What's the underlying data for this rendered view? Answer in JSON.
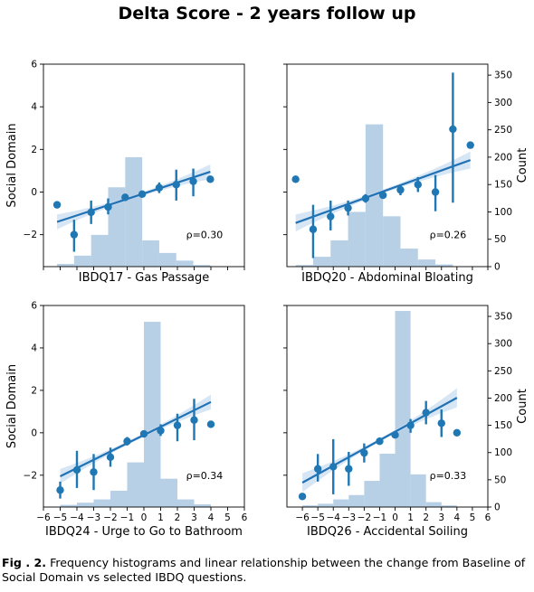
{
  "figure": {
    "title": "Delta Score - 2 years follow up",
    "caption_label": "Fig . 2.",
    "caption_text": "Frequency histograms and linear relationship between the change from Baseline of Social Domain vs selected IBDQ questions."
  },
  "colors": {
    "point": "#1f77b4",
    "line": "#2171b5",
    "hist": "#aac8e1",
    "ci_band": "#c6dcef"
  },
  "chart_data": [
    {
      "type": "scatter",
      "xlabel": "IBDQ17 - Gas Passage",
      "ylabel": "Social Domain",
      "y2label": "",
      "annotation": "ρ=0.30",
      "xlim": [
        -5.8,
        6
      ],
      "ylim": [
        -3.5,
        6
      ],
      "y2lim": [
        0,
        370
      ],
      "yticks": [
        -2,
        0,
        2,
        4,
        6
      ],
      "y2ticks": [],
      "xticks": [],
      "points": [
        {
          "x": -5,
          "y": -0.6,
          "lo": -0.6,
          "hi": -0.6
        },
        {
          "x": -4,
          "y": -2.0,
          "lo": -2.8,
          "hi": -1.3
        },
        {
          "x": -3,
          "y": -0.95,
          "lo": -1.5,
          "hi": -0.4
        },
        {
          "x": -2,
          "y": -0.7,
          "lo": -1.05,
          "hi": -0.3
        },
        {
          "x": -1,
          "y": -0.25,
          "lo": -0.4,
          "hi": -0.1
        },
        {
          "x": 0,
          "y": -0.1,
          "lo": -0.2,
          "hi": 0.0
        },
        {
          "x": 1,
          "y": 0.2,
          "lo": -0.05,
          "hi": 0.45
        },
        {
          "x": 2,
          "y": 0.35,
          "lo": -0.4,
          "hi": 1.05
        },
        {
          "x": 3,
          "y": 0.5,
          "lo": -0.2,
          "hi": 1.1
        },
        {
          "x": 4,
          "y": 0.6,
          "lo": 0.6,
          "hi": 0.6
        }
      ],
      "fit": {
        "x1": -5,
        "y1": -1.4,
        "x2": 4,
        "y2": 0.95,
        "band_low": 0.35,
        "band_mid": 0.08
      },
      "hist": [
        {
          "x0": -5,
          "x1": -4,
          "count": 5
        },
        {
          "x0": -4,
          "x1": -3,
          "count": 20
        },
        {
          "x0": -3,
          "x1": -2,
          "count": 58
        },
        {
          "x0": -2,
          "x1": -1,
          "count": 145
        },
        {
          "x0": -1,
          "x1": 0,
          "count": 200
        },
        {
          "x0": 0,
          "x1": 1,
          "count": 48
        },
        {
          "x0": 1,
          "x1": 2,
          "count": 25
        },
        {
          "x0": 2,
          "x1": 3,
          "count": 11
        },
        {
          "x0": 3,
          "x1": 4,
          "count": 3
        }
      ]
    },
    {
      "type": "scatter",
      "xlabel": "IBDQ20 - Abdominal Bloating",
      "ylabel": "",
      "y2label": "Count",
      "annotation": "ρ=0.26",
      "xlim": [
        -6.5,
        5
      ],
      "ylim": [
        -3.5,
        6
      ],
      "y2lim": [
        0,
        370
      ],
      "yticks": [],
      "y2ticks": [
        0,
        50,
        100,
        150,
        200,
        250,
        300,
        350
      ],
      "xticks": [],
      "points": [
        {
          "x": -6,
          "y": 0.6,
          "lo": 0.6,
          "hi": 0.6
        },
        {
          "x": -5,
          "y": -1.75,
          "lo": -3.1,
          "hi": -0.6
        },
        {
          "x": -4,
          "y": -1.15,
          "lo": -1.8,
          "hi": -0.4
        },
        {
          "x": -3,
          "y": -0.75,
          "lo": -1.1,
          "hi": -0.4
        },
        {
          "x": -2,
          "y": -0.3,
          "lo": -0.5,
          "hi": -0.1
        },
        {
          "x": -1,
          "y": -0.15,
          "lo": -0.3,
          "hi": 0.0
        },
        {
          "x": 0,
          "y": 0.1,
          "lo": -0.15,
          "hi": 0.3
        },
        {
          "x": 1,
          "y": 0.35,
          "lo": 0.0,
          "hi": 0.7
        },
        {
          "x": 2,
          "y": 0.0,
          "lo": -0.9,
          "hi": 0.8
        },
        {
          "x": 3,
          "y": 2.95,
          "lo": -0.5,
          "hi": 5.6
        },
        {
          "x": 4,
          "y": 2.2,
          "lo": 2.2,
          "hi": 2.2
        }
      ],
      "fit": {
        "x1": -6,
        "y1": -1.45,
        "x2": 4,
        "y2": 1.5,
        "band_low": 0.4,
        "band_mid": 0.09
      },
      "hist": [
        {
          "x0": -6,
          "x1": -5,
          "count": 3
        },
        {
          "x0": -5,
          "x1": -4,
          "count": 18
        },
        {
          "x0": -4,
          "x1": -3,
          "count": 48
        },
        {
          "x0": -3,
          "x1": -2,
          "count": 100
        },
        {
          "x0": -2,
          "x1": -1,
          "count": 260
        },
        {
          "x0": -1,
          "x1": 0,
          "count": 92
        },
        {
          "x0": 0,
          "x1": 1,
          "count": 33
        },
        {
          "x0": 1,
          "x1": 2,
          "count": 13
        },
        {
          "x0": 2,
          "x1": 3,
          "count": 4
        }
      ]
    },
    {
      "type": "scatter",
      "xlabel": "IBDQ24 - Urge to Go to Bathroom",
      "ylabel": "Social Domain",
      "y2label": "",
      "annotation": "ρ=0.34",
      "xlim": [
        -6,
        6
      ],
      "ylim": [
        -3.5,
        6
      ],
      "y2lim": [
        0,
        370
      ],
      "yticks": [
        -2,
        0,
        2,
        4,
        6
      ],
      "y2ticks": [],
      "xticks": [
        -6,
        -5,
        -4,
        -3,
        -2,
        -1,
        0,
        1,
        2,
        3,
        4,
        5,
        6
      ],
      "points": [
        {
          "x": -5,
          "y": -2.7,
          "lo": -3.1,
          "hi": -2.3
        },
        {
          "x": -4,
          "y": -1.75,
          "lo": -2.6,
          "hi": -0.85
        },
        {
          "x": -3,
          "y": -1.85,
          "lo": -2.7,
          "hi": -1.0
        },
        {
          "x": -2,
          "y": -1.15,
          "lo": -1.6,
          "hi": -0.7
        },
        {
          "x": -1,
          "y": -0.4,
          "lo": -0.6,
          "hi": -0.2
        },
        {
          "x": 0,
          "y": -0.05,
          "lo": -0.15,
          "hi": 0.05
        },
        {
          "x": 1,
          "y": 0.1,
          "lo": -0.15,
          "hi": 0.4
        },
        {
          "x": 2,
          "y": 0.35,
          "lo": -0.4,
          "hi": 0.9
        },
        {
          "x": 3,
          "y": 0.6,
          "lo": -0.35,
          "hi": 1.6
        },
        {
          "x": 4,
          "y": 0.4,
          "lo": 0.4,
          "hi": 0.4
        }
      ],
      "fit": {
        "x1": -5,
        "y1": -2.05,
        "x2": 4,
        "y2": 1.45,
        "band_low": 0.35,
        "band_mid": 0.08
      },
      "hist": [
        {
          "x0": -5,
          "x1": -4,
          "count": 4
        },
        {
          "x0": -4,
          "x1": -3,
          "count": 8
        },
        {
          "x0": -3,
          "x1": -2,
          "count": 14
        },
        {
          "x0": -2,
          "x1": -1,
          "count": 30
        },
        {
          "x0": -1,
          "x1": 0,
          "count": 82
        },
        {
          "x0": 0,
          "x1": 1,
          "count": 340
        },
        {
          "x0": 1,
          "x1": 2,
          "count": 52
        },
        {
          "x0": 2,
          "x1": 3,
          "count": 14
        },
        {
          "x0": 3,
          "x1": 4,
          "count": 5
        }
      ]
    },
    {
      "type": "scatter",
      "xlabel": "IBDQ26 - Accidental Soiling",
      "ylabel": "",
      "y2label": "Count",
      "annotation": "ρ=0.33",
      "xlim": [
        -7,
        6
      ],
      "ylim": [
        -3.5,
        6
      ],
      "y2lim": [
        0,
        370
      ],
      "yticks": [],
      "y2ticks": [
        0,
        50,
        100,
        150,
        200,
        250,
        300,
        350
      ],
      "xticks": [
        -6,
        -5,
        -4,
        -3,
        -2,
        -1,
        0,
        1,
        2,
        3,
        4,
        5,
        6
      ],
      "points": [
        {
          "x": -6,
          "y": -3.0,
          "lo": -3.0,
          "hi": -3.0
        },
        {
          "x": -5,
          "y": -1.7,
          "lo": -2.3,
          "hi": -1.0
        },
        {
          "x": -4,
          "y": -1.6,
          "lo": -2.9,
          "hi": -0.3
        },
        {
          "x": -3,
          "y": -1.7,
          "lo": -2.5,
          "hi": -0.9
        },
        {
          "x": -2,
          "y": -0.95,
          "lo": -1.4,
          "hi": -0.5
        },
        {
          "x": -1,
          "y": -0.4,
          "lo": -0.55,
          "hi": -0.25
        },
        {
          "x": 0,
          "y": -0.1,
          "lo": -0.2,
          "hi": 0.0
        },
        {
          "x": 1,
          "y": 0.35,
          "lo": 0.0,
          "hi": 0.65
        },
        {
          "x": 2,
          "y": 0.95,
          "lo": 0.4,
          "hi": 1.5
        },
        {
          "x": 3,
          "y": 0.45,
          "lo": -0.2,
          "hi": 1.1
        },
        {
          "x": 4,
          "y": 0.0,
          "lo": 0.0,
          "hi": 0.0
        }
      ],
      "fit": {
        "x1": -6,
        "y1": -2.35,
        "x2": 4,
        "y2": 1.65,
        "band_low": 0.45,
        "band_mid": 0.08
      },
      "hist": [
        {
          "x0": -6,
          "x1": -5,
          "count": 3
        },
        {
          "x0": -5,
          "x1": -4,
          "count": 6
        },
        {
          "x0": -4,
          "x1": -3,
          "count": 14
        },
        {
          "x0": -3,
          "x1": -2,
          "count": 22
        },
        {
          "x0": -2,
          "x1": -1,
          "count": 48
        },
        {
          "x0": -1,
          "x1": 0,
          "count": 98
        },
        {
          "x0": 0,
          "x1": 1,
          "count": 360
        },
        {
          "x0": 1,
          "x1": 2,
          "count": 60
        },
        {
          "x0": 2,
          "x1": 3,
          "count": 9
        },
        {
          "x0": 3,
          "x1": 4,
          "count": 3
        }
      ]
    }
  ]
}
